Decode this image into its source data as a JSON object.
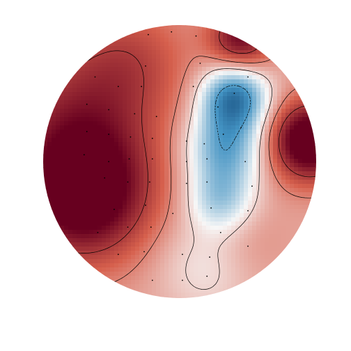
{
  "chart_data": {
    "type": "heatmap",
    "variant": "scalp-topography",
    "title": "",
    "colormap": "RdBu_r",
    "colors": {
      "max": "#67001f",
      "high": "#d6604d",
      "mid": "#f7f7f7",
      "low": "#4393c3",
      "min": "#053061",
      "contour": "#000000",
      "sensor": "#000000"
    },
    "axes_visible": false,
    "grid": false,
    "legend": "none",
    "colorbar": false,
    "sensors": [
      {
        "x": -0.23,
        "y": 0.93
      },
      {
        "x": -0.06,
        "y": 0.95
      },
      {
        "x": 0.12,
        "y": 0.92
      },
      {
        "x": -0.62,
        "y": 0.62
      },
      {
        "x": -0.25,
        "y": 0.7
      },
      {
        "x": 0.15,
        "y": 0.72
      },
      {
        "x": 0.5,
        "y": 0.62
      },
      {
        "x": -0.45,
        "y": 0.55
      },
      {
        "x": -0.28,
        "y": 0.55
      },
      {
        "x": 0.1,
        "y": 0.55
      },
      {
        "x": 0.4,
        "y": 0.5
      },
      {
        "x": -0.68,
        "y": 0.42
      },
      {
        "x": -0.52,
        "y": 0.38
      },
      {
        "x": -0.33,
        "y": 0.35
      },
      {
        "x": -0.17,
        "y": 0.33
      },
      {
        "x": 0.28,
        "y": 0.4
      },
      {
        "x": 0.45,
        "y": 0.25
      },
      {
        "x": -0.68,
        "y": 0.22
      },
      {
        "x": -0.52,
        "y": 0.2
      },
      {
        "x": -0.36,
        "y": 0.18
      },
      {
        "x": -0.2,
        "y": 0.17
      },
      {
        "x": 0.05,
        "y": 0.15
      },
      {
        "x": 0.18,
        "y": 0.13
      },
      {
        "x": 0.32,
        "y": 0.2
      },
      {
        "x": -0.7,
        "y": 0.05
      },
      {
        "x": -0.52,
        "y": 0.0
      },
      {
        "x": -0.37,
        "y": 0.02
      },
      {
        "x": -0.2,
        "y": 0.02
      },
      {
        "x": 0.05,
        "y": 0.0
      },
      {
        "x": 0.2,
        "y": 0.02
      },
      {
        "x": 0.48,
        "y": 0.0
      },
      {
        "x": -0.55,
        "y": -0.12
      },
      {
        "x": -0.38,
        "y": -0.15
      },
      {
        "x": -0.22,
        "y": -0.15
      },
      {
        "x": 0.05,
        "y": -0.16
      },
      {
        "x": 0.2,
        "y": -0.15
      },
      {
        "x": 0.53,
        "y": -0.18
      },
      {
        "x": -0.48,
        "y": -0.35
      },
      {
        "x": -0.25,
        "y": -0.32
      },
      {
        "x": -0.05,
        "y": -0.38
      },
      {
        "x": 0.23,
        "y": -0.34
      },
      {
        "x": 0.5,
        "y": -0.36
      },
      {
        "x": -0.6,
        "y": -0.52
      },
      {
        "x": -0.38,
        "y": -0.48
      },
      {
        "x": -0.21,
        "y": -0.48
      },
      {
        "x": 0.3,
        "y": -0.52
      },
      {
        "x": 0.5,
        "y": -0.62
      },
      {
        "x": -0.45,
        "y": -0.68
      },
      {
        "x": -0.26,
        "y": -0.66
      },
      {
        "x": 0.02,
        "y": -0.68
      },
      {
        "x": 0.22,
        "y": -0.7
      },
      {
        "x": -0.2,
        "y": -0.87
      },
      {
        "x": 0.02,
        "y": -0.87
      },
      {
        "x": 0.2,
        "y": -0.84
      }
    ],
    "sources": [
      {
        "x": -0.7,
        "y": -0.25,
        "amplitude": 1.15,
        "spread": 0.33
      },
      {
        "x": -0.75,
        "y": 0.3,
        "amplitude": 0.6,
        "spread": 0.42
      },
      {
        "x": 0.95,
        "y": 0.15,
        "amplitude": 1.3,
        "spread": 0.2
      },
      {
        "x": 0.45,
        "y": 0.9,
        "amplitude": 0.9,
        "spread": 0.16
      },
      {
        "x": -0.35,
        "y": 0.75,
        "amplitude": 0.35,
        "spread": 0.3
      },
      {
        "x": 0.4,
        "y": 0.47,
        "amplitude": -1.15,
        "spread": 0.17
      },
      {
        "x": 0.33,
        "y": 0.1,
        "amplitude": -0.85,
        "spread": 0.2
      },
      {
        "x": 0.3,
        "y": -0.28,
        "amplitude": -0.6,
        "spread": 0.17
      },
      {
        "x": 0.2,
        "y": -0.75,
        "amplitude": -0.3,
        "spread": 0.25
      },
      {
        "x": 0.45,
        "y": -0.6,
        "amplitude": 0.15,
        "spread": 0.22
      }
    ],
    "baseline": 0.35,
    "contour_levels": [
      -1.0,
      -0.6,
      0.15,
      0.5,
      0.9
    ],
    "value_range": [
      -1.3,
      1.3
    ]
  }
}
